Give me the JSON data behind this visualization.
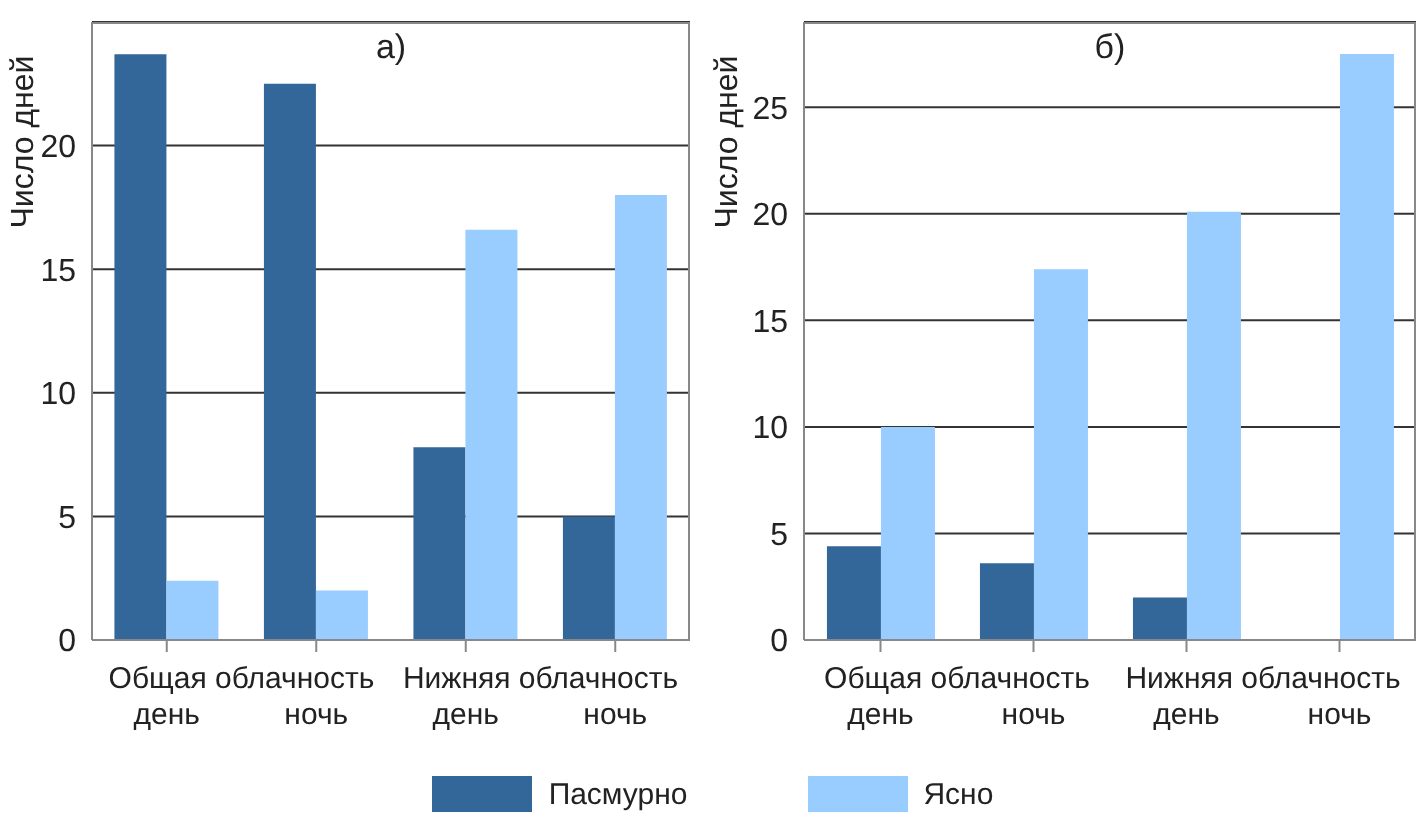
{
  "chart_data": [
    {
      "type": "bar",
      "title": "а)",
      "ylabel": "Число дней",
      "categories": [
        "день",
        "ночь",
        "день",
        "ночь"
      ],
      "annotations": [
        "Общая облачность",
        "Нижняя облачность"
      ],
      "series": [
        {
          "name": "Пасмурно",
          "color": "#336699",
          "values": [
            23.7,
            22.5,
            7.8,
            5.0
          ]
        },
        {
          "name": "Ясно",
          "color": "#99ccff",
          "values": [
            2.4,
            2.0,
            16.6,
            18.0
          ]
        }
      ],
      "ylim": [
        0,
        25
      ],
      "yticks": [
        0,
        5,
        10,
        15,
        20
      ],
      "grid": "y",
      "legend": "bottom"
    },
    {
      "type": "bar",
      "title": "б)",
      "ylabel": "Число дней",
      "categories": [
        "день",
        "ночь",
        "день",
        "ночь"
      ],
      "annotations": [
        "Общая облачность",
        "Нижняя облачность"
      ],
      "series": [
        {
          "color": "#336699",
          "values": [
            4.4,
            3.6,
            2.0,
            0
          ]
        },
        {
          "color": "#99ccff",
          "values": [
            10.0,
            17.4,
            20.1,
            27.5
          ]
        }
      ],
      "ylim": [
        0,
        29
      ],
      "yticks": [
        0,
        5,
        10,
        15,
        20,
        25
      ],
      "grid": "y"
    }
  ]
}
